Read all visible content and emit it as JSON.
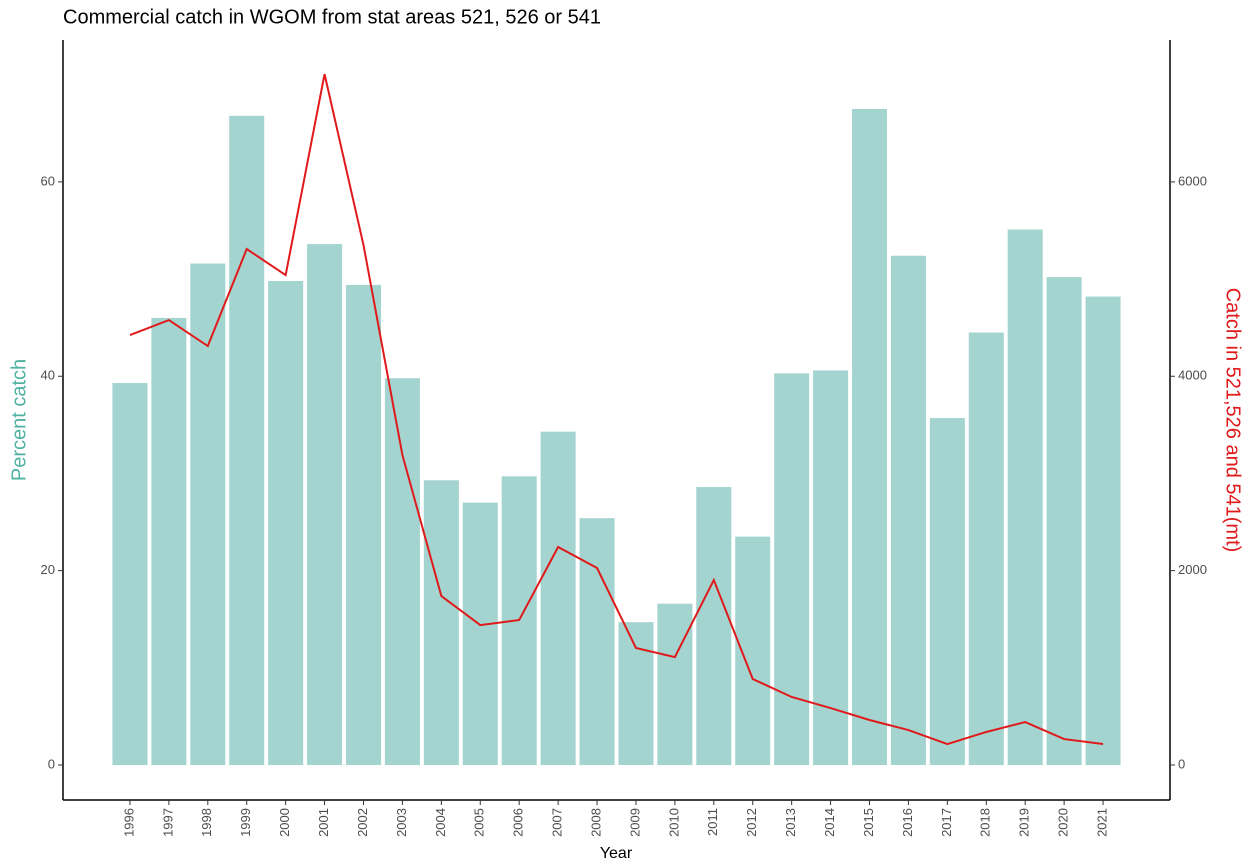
{
  "chart_data": {
    "type": "bar",
    "title": "Commercial catch in WGOM from stat areas 521, 526 or 541",
    "xlabel": "Year",
    "ylabel": "Percent catch",
    "y2label": "Catch in 521,526 and 541(mt)",
    "ylabel_color": "#4fb2a2",
    "y2label_color": "#e0191b",
    "categories": [
      "1996",
      "1997",
      "1998",
      "1999",
      "2000",
      "2001",
      "2002",
      "2003",
      "2004",
      "2005",
      "2006",
      "2007",
      "2008",
      "2009",
      "2010",
      "2011",
      "2012",
      "2013",
      "2014",
      "2015",
      "2016",
      "2017",
      "2018",
      "2019",
      "2020",
      "2021"
    ],
    "series": [
      {
        "type": "bar",
        "color": "#a3d4cf",
        "values": [
          39.3,
          46.0,
          51.6,
          66.8,
          49.8,
          53.6,
          49.4,
          39.8,
          29.3,
          27.0,
          29.7,
          34.3,
          25.4,
          14.7,
          16.6,
          28.6,
          23.5,
          40.3,
          40.6,
          67.5,
          52.4,
          35.7,
          44.5,
          55.1,
          50.2,
          48.2
        ]
      },
      {
        "type": "line",
        "axis": "y2",
        "color": "#e0191b",
        "values": [
          4424,
          4578,
          4311,
          5309,
          5041,
          7109,
          5350,
          3189,
          1739,
          1440,
          1492,
          2243,
          2027,
          1204,
          1111,
          1903,
          885,
          700,
          586,
          463,
          360,
          216,
          340,
          442,
          267,
          216
        ]
      }
    ],
    "ylim": [
      -3.6,
      74.6
    ],
    "yticks": [
      0,
      20,
      40,
      60
    ],
    "y2lim": [
      -360,
      7460
    ],
    "y2ticks": [
      0,
      2000,
      4000,
      6000
    ],
    "grid": false
  }
}
